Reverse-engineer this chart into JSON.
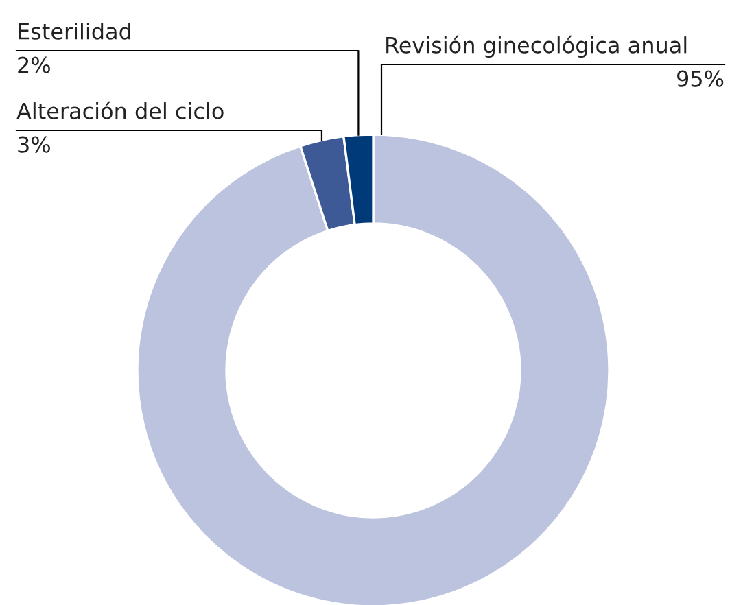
{
  "chart_data": {
    "type": "donut",
    "categories": [
      "Revisión ginecológica anual",
      "Alteración del ciclo",
      "Esterilidad"
    ],
    "values": [
      95,
      3,
      2
    ],
    "value_labels": [
      "95%",
      "3%",
      "2%"
    ],
    "colors": [
      "#bcc3de",
      "#3d5a96",
      "#003a78"
    ]
  }
}
